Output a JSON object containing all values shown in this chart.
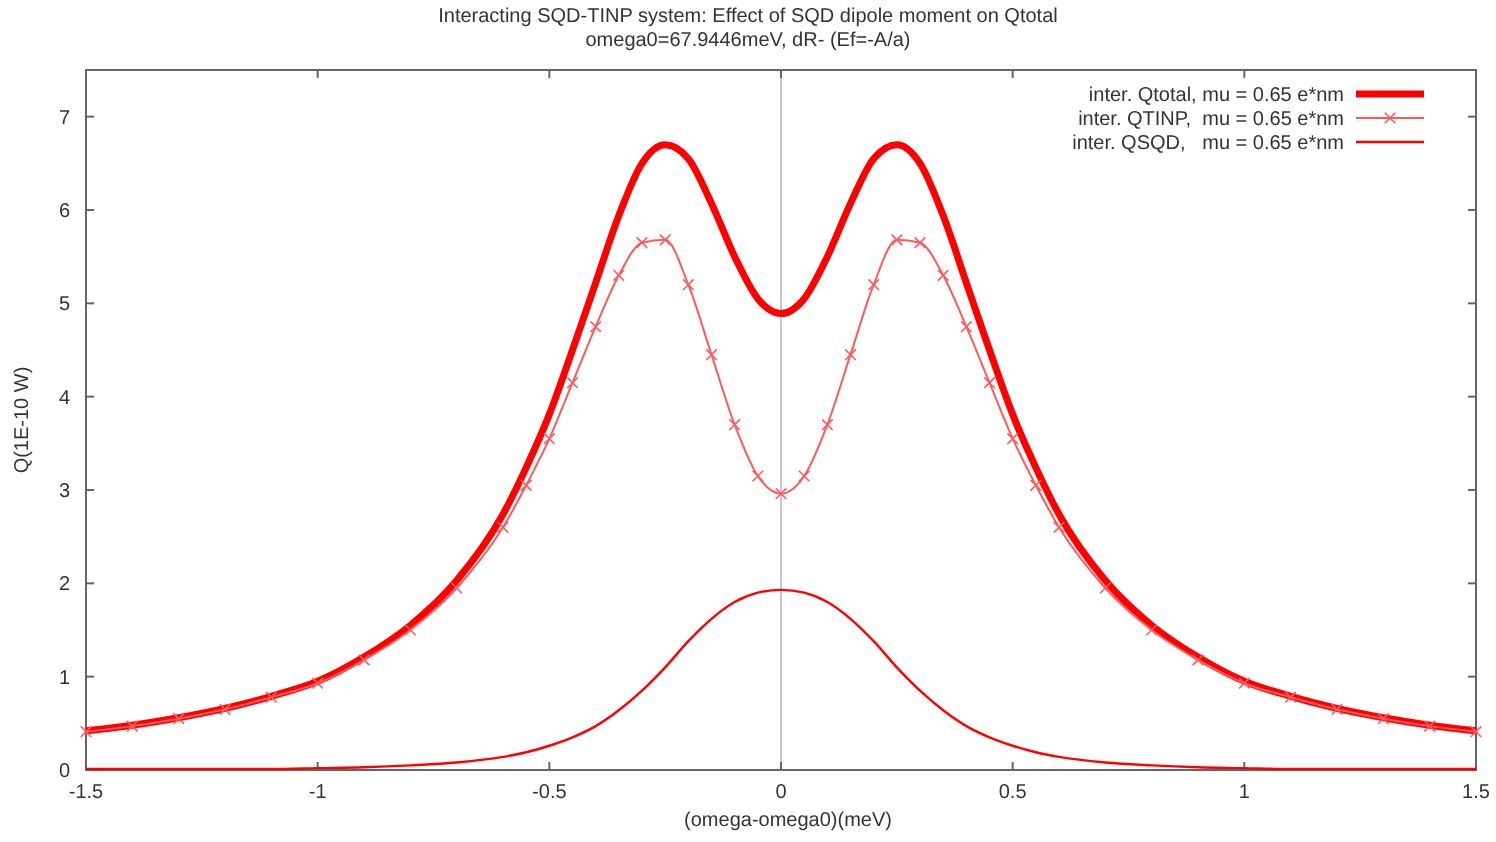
{
  "chart_data": {
    "type": "line",
    "title": "Interacting SQD-TINP system: Effect of SQD dipole moment on Qtotal",
    "subtitle": "omega0=67.9446meV,  dR- (Ef=-A/a)",
    "xlabel": "(omega-omega0)(meV)",
    "ylabel": "Q(1E-10 W)",
    "x": [
      -1.5,
      -1.4,
      -1.3,
      -1.2,
      -1.1,
      -1.0,
      -0.9,
      -0.8,
      -0.7,
      -0.6,
      -0.55,
      -0.5,
      -0.45,
      -0.4,
      -0.35,
      -0.3,
      -0.25,
      -0.2,
      -0.15,
      -0.1,
      -0.05,
      0,
      0.05,
      0.1,
      0.15,
      0.2,
      0.25,
      0.3,
      0.35,
      0.4,
      0.45,
      0.5,
      0.55,
      0.6,
      0.7,
      0.8,
      0.9,
      1.0,
      1.1,
      1.2,
      1.3,
      1.4,
      1.5
    ],
    "series": [
      {
        "name": "inter. Qtotal, mu = 0.65 e*nm",
        "color": "#ff0000",
        "marker": "none",
        "values": [
          0.42,
          0.48,
          0.56,
          0.66,
          0.79,
          0.95,
          1.21,
          1.55,
          2.03,
          2.74,
          3.24,
          3.81,
          4.5,
          5.22,
          5.94,
          6.5,
          6.7,
          6.55,
          6.07,
          5.5,
          5.05,
          4.89,
          5.05,
          5.5,
          6.07,
          6.55,
          6.7,
          6.5,
          5.94,
          5.22,
          4.5,
          3.81,
          3.24,
          2.74,
          2.03,
          1.55,
          1.21,
          0.95,
          0.79,
          0.66,
          0.56,
          0.48,
          0.42
        ]
      },
      {
        "name": "inter. QTINP,  mu = 0.65 e*nm",
        "color": "#ff5a5a",
        "marker": "cross",
        "values": [
          0.41,
          0.47,
          0.55,
          0.65,
          0.78,
          0.93,
          1.18,
          1.5,
          1.95,
          2.6,
          3.05,
          3.55,
          4.15,
          4.75,
          5.3,
          5.65,
          5.68,
          5.2,
          4.45,
          3.7,
          3.15,
          2.96,
          3.15,
          3.7,
          4.45,
          5.2,
          5.68,
          5.65,
          5.3,
          4.75,
          4.15,
          3.55,
          3.05,
          2.6,
          1.95,
          1.5,
          1.18,
          0.93,
          0.78,
          0.65,
          0.55,
          0.47,
          0.41
        ]
      },
      {
        "name": "inter. QSQD,   mu = 0.65 e*nm",
        "color": "#ff0000",
        "marker": "none",
        "values": [
          0.01,
          0.01,
          0.01,
          0.01,
          0.01,
          0.02,
          0.03,
          0.05,
          0.08,
          0.14,
          0.19,
          0.26,
          0.35,
          0.47,
          0.64,
          0.85,
          1.1,
          1.38,
          1.62,
          1.8,
          1.9,
          1.93,
          1.9,
          1.8,
          1.62,
          1.38,
          1.1,
          0.85,
          0.64,
          0.47,
          0.35,
          0.26,
          0.19,
          0.14,
          0.08,
          0.05,
          0.03,
          0.02,
          0.01,
          0.01,
          0.01,
          0.01,
          0.01
        ]
      }
    ],
    "xlim": [
      -1.5,
      1.5
    ],
    "xticks": [
      -1.5,
      -1,
      -0.5,
      0,
      0.5,
      1,
      1.5
    ],
    "ylim": [
      0,
      7.5
    ],
    "yticks": [
      0,
      1,
      2,
      3,
      4,
      5,
      6,
      7
    ],
    "ref_lines": [
      {
        "axis": "x",
        "value": 0,
        "color": "#c8c8c8"
      }
    ],
    "grid": false,
    "legend": "top right"
  }
}
